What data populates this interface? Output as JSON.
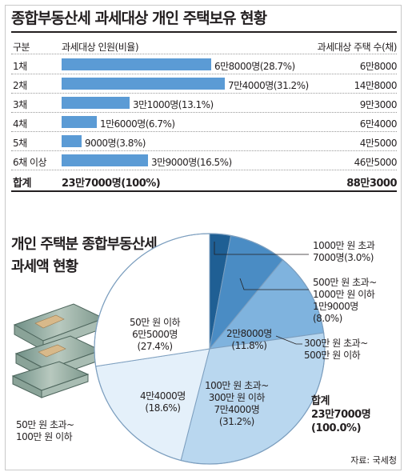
{
  "title": "종합부동산세 과세대상 개인 주택보유 현황",
  "table": {
    "col_headers": [
      "구분",
      "과세대상 인원(비율)",
      "과세대상 주택 수(채)"
    ],
    "rows": [
      {
        "label": "1채",
        "people_text": "6만8000명(28.7%)",
        "houses": "6만8000"
      },
      {
        "label": "2채",
        "people_text": "7만4000명(31.2%)",
        "houses": "14만8000"
      },
      {
        "label": "3채",
        "people_text": "3만1000명(13.1%)",
        "houses": "9만3000"
      },
      {
        "label": "4채",
        "people_text": "1만6000명(6.7%)",
        "houses": "6만4000"
      },
      {
        "label": "5채",
        "people_text": "9000명(3.8%)",
        "houses": "4만5000"
      },
      {
        "label": "6채 이상",
        "people_text": "3만9000명(16.5%)",
        "houses": "46만5000"
      }
    ],
    "total": {
      "label": "합계",
      "people_text": "23만7000명(100%)",
      "houses": "88만3000"
    }
  },
  "pie_title_line1": "개인 주택분 종합부동산세",
  "pie_title_line2": "과세액 현황",
  "pie_labels": {
    "s1": [
      "1000만 원 초과",
      "7000명(3.0%)"
    ],
    "s2": [
      "500만 원 초과~",
      "1000만 원 이하",
      "1만9000명",
      "(8.0%)"
    ],
    "s3_value": [
      "2만8000명",
      "(11.8%)"
    ],
    "s3_range": [
      "300만 원 초과~",
      "500만 원 이하"
    ],
    "s4": [
      "100만 원 초과~",
      "300만 원 이하",
      "7만4000명",
      "(31.2%)"
    ],
    "s5_value": [
      "4만4000명",
      "(18.6%)"
    ],
    "s5_range": [
      "50만 원 초과~",
      "100만 원 이하"
    ],
    "s6": [
      "50만 원 이하",
      "6만5000명",
      "(27.4%)"
    ],
    "total": [
      "합계",
      "23만7000명",
      "(100.0%)"
    ]
  },
  "source": "자료: 국세청",
  "colors": {
    "bar": "#5b9bd5",
    "pie": [
      "#1f5f94",
      "#4a8cc4",
      "#7fb3de",
      "#b9d7ef",
      "#e4f0fa",
      "#ffffff"
    ],
    "pie_outline": "#7d9fbf"
  },
  "chart_data": [
    {
      "type": "bar",
      "title": "종합부동산세 과세대상 개인 주택보유 현황",
      "categories": [
        "1채",
        "2채",
        "3채",
        "4채",
        "5채",
        "6채 이상"
      ],
      "series": [
        {
          "name": "과세대상 인원(비율)",
          "values": [
            68000,
            74000,
            31000,
            16000,
            9000,
            39000
          ],
          "percent": [
            28.7,
            31.2,
            13.1,
            6.7,
            3.8,
            16.5
          ]
        }
      ],
      "houses": [
        68000,
        148000,
        93000,
        64000,
        45000,
        465000
      ],
      "total_people": 237000,
      "total_houses": 883000
    },
    {
      "type": "pie",
      "title": "개인 주택분 종합부동산세 과세액 현황",
      "categories": [
        "1000만 원 초과",
        "500만 원 초과~1000만 원 이하",
        "300만 원 초과~500만 원 이하",
        "100만 원 초과~300만 원 이하",
        "50만 원 초과~100만 원 이하",
        "50만 원 이하"
      ],
      "values": [
        7000,
        19000,
        28000,
        74000,
        44000,
        65000
      ],
      "percent": [
        3.0,
        8.0,
        11.8,
        31.2,
        18.6,
        27.4
      ],
      "total": 237000
    }
  ]
}
